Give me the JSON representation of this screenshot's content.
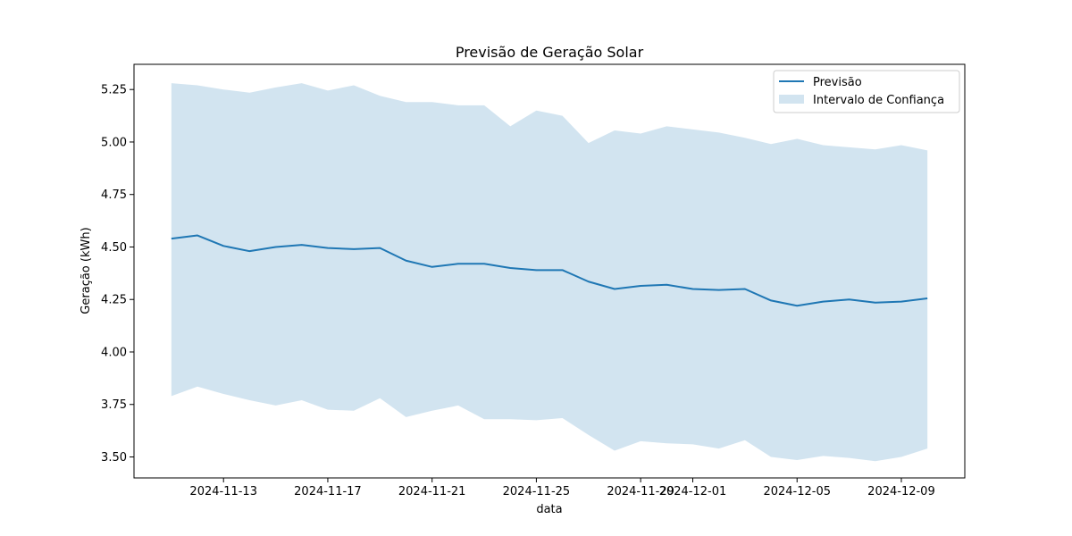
{
  "chart_data": {
    "type": "line",
    "title": "Previsão de Geração Solar",
    "xlabel": "data",
    "ylabel": "Geração (kWh)",
    "x_start": "2024-11-11",
    "x_tick_labels": [
      "2024-11-13",
      "2024-11-17",
      "2024-11-21",
      "2024-11-25",
      "2024-11-29",
      "2024-12-01",
      "2024-12-05",
      "2024-12-09"
    ],
    "y_tick_labels": [
      "3.50",
      "3.75",
      "4.00",
      "4.25",
      "4.50",
      "4.75",
      "5.00",
      "5.25"
    ],
    "ylim": [
      3.4,
      5.37
    ],
    "grid": false,
    "legend_position": "top-right",
    "series": [
      {
        "name": "Previsão",
        "type": "line",
        "color": "#1f77b4",
        "values": [
          4.54,
          4.555,
          4.505,
          4.48,
          4.5,
          4.51,
          4.495,
          4.49,
          4.495,
          4.435,
          4.405,
          4.42,
          4.42,
          4.4,
          4.39,
          4.39,
          4.335,
          4.3,
          4.315,
          4.32,
          4.3,
          4.295,
          4.3,
          4.245,
          4.22,
          4.24,
          4.25,
          4.235,
          4.24,
          4.255
        ]
      },
      {
        "name": "Intervalo de Confiança",
        "type": "band",
        "color": "#1f77b4",
        "opacity": 0.2,
        "upper": [
          5.28,
          5.27,
          5.25,
          5.235,
          5.26,
          5.28,
          5.245,
          5.27,
          5.22,
          5.19,
          5.19,
          5.175,
          5.175,
          5.075,
          5.15,
          5.125,
          4.995,
          5.055,
          5.04,
          5.075,
          5.06,
          5.045,
          5.02,
          4.99,
          5.015,
          4.985,
          4.975,
          4.965,
          4.985,
          4.96
        ],
        "lower": [
          3.79,
          3.835,
          3.8,
          3.77,
          3.745,
          3.77,
          3.725,
          3.72,
          3.78,
          3.69,
          3.72,
          3.745,
          3.68,
          3.68,
          3.675,
          3.685,
          3.605,
          3.53,
          3.575,
          3.565,
          3.56,
          3.54,
          3.58,
          3.5,
          3.485,
          3.505,
          3.495,
          3.48,
          3.5,
          3.54
        ]
      }
    ]
  }
}
